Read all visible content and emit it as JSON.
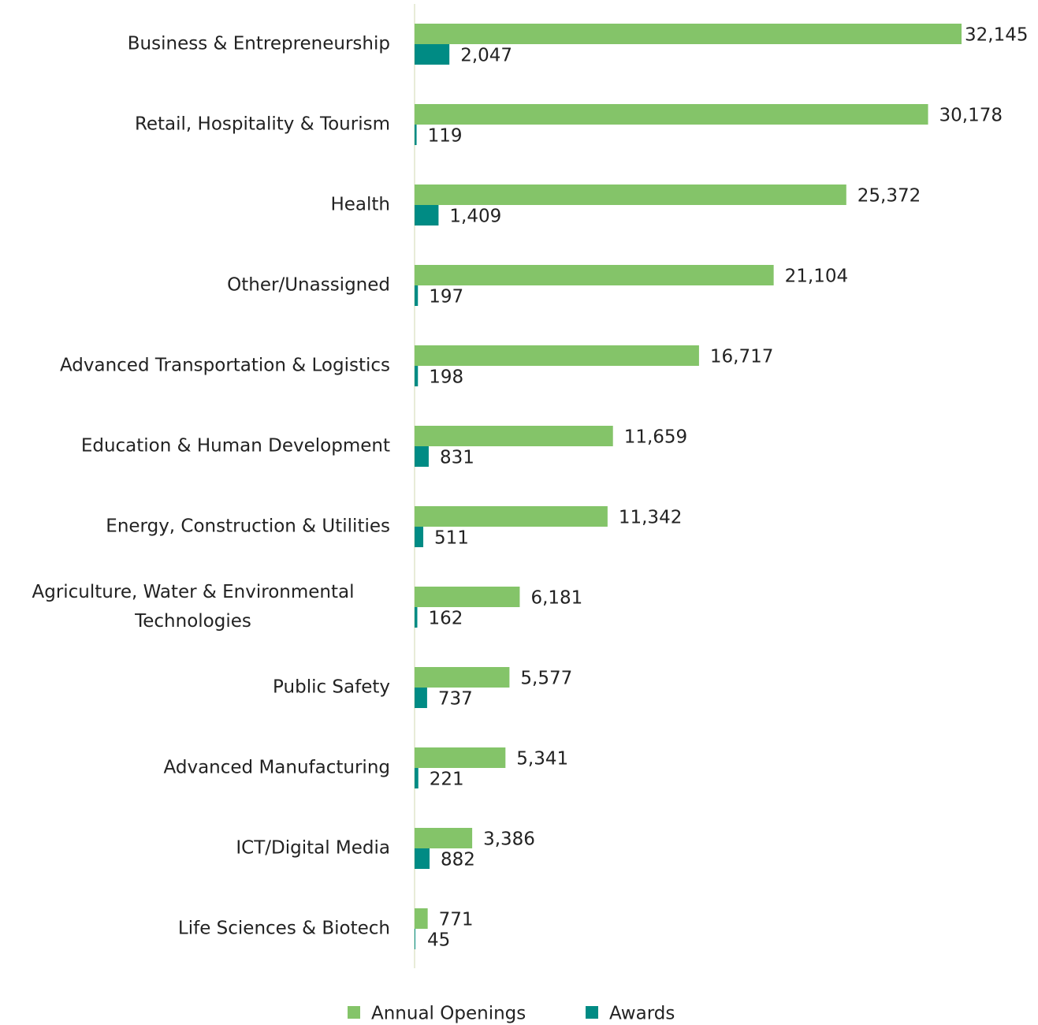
{
  "chart_data": {
    "type": "bar",
    "orientation": "horizontal",
    "categories": [
      "Business & Entrepreneurship",
      "Retail, Hospitality & Tourism",
      "Health",
      "Other/Unassigned",
      "Advanced Transportation & Logistics",
      "Education & Human Development",
      "Energy, Construction & Utilities",
      "Agriculture, Water & Environmental Technologies",
      "Public Safety",
      "Advanced Manufacturing",
      "ICT/Digital Media",
      "Life Sciences & Biotech"
    ],
    "series": [
      {
        "name": "Annual Openings",
        "color": "#84c469",
        "values": [
          32145,
          30178,
          25372,
          21104,
          16717,
          11659,
          11342,
          6181,
          5577,
          5341,
          3386,
          771
        ],
        "value_labels": [
          "32,145",
          "30,178",
          "25,372",
          "21,104",
          "16,717",
          "11,659",
          "11,342",
          "6,181",
          "5,577",
          "5,341",
          "3,386",
          "771"
        ]
      },
      {
        "name": "Awards",
        "color": "#008b84",
        "values": [
          2047,
          119,
          1409,
          197,
          198,
          831,
          511,
          162,
          737,
          221,
          882,
          45
        ],
        "value_labels": [
          "2,047",
          "119",
          "1,409",
          "197",
          "198",
          "831",
          "511",
          "162",
          "737",
          "221",
          "882",
          "45"
        ]
      }
    ],
    "legend": "bottom"
  }
}
